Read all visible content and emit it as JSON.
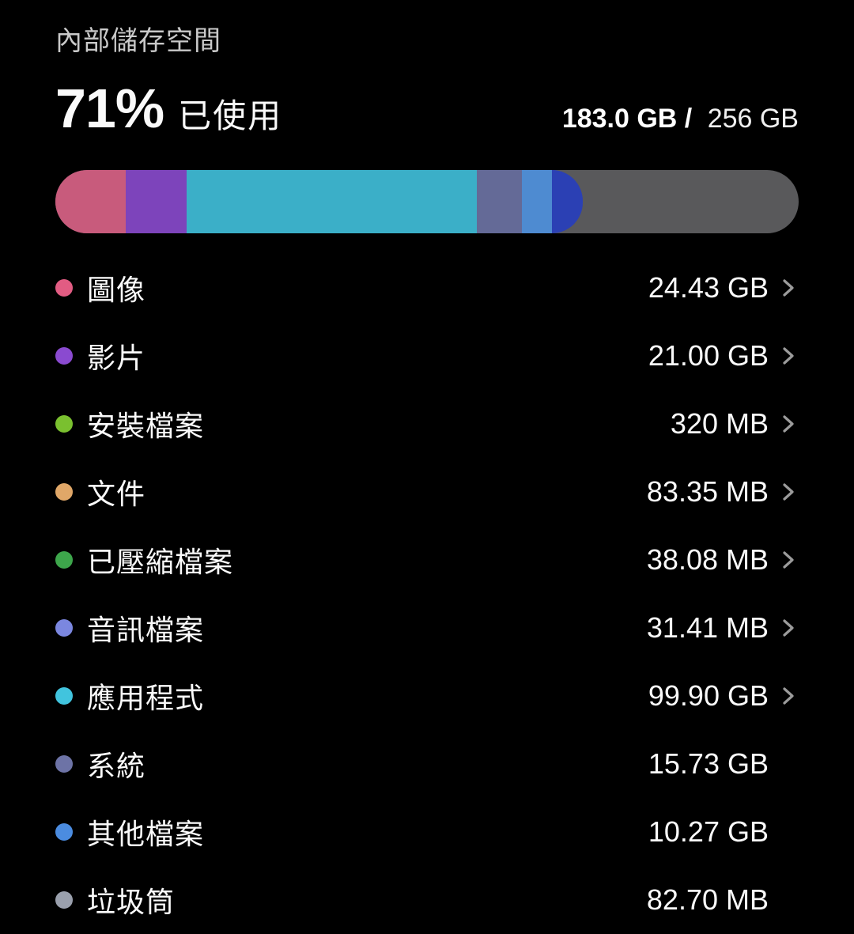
{
  "header": {
    "title": "內部儲存空間",
    "percent_used": "71%",
    "used_label": "已使用",
    "used_amount": "183.0 GB /",
    "total_amount": "256 GB"
  },
  "bar": {
    "track_color": "#59595b",
    "segments": [
      {
        "name": "images",
        "color": "#c85b7c",
        "percent": 9.5
      },
      {
        "name": "videos",
        "color": "#7d44bb",
        "percent": 8.2
      },
      {
        "name": "apps",
        "color": "#3bafc8",
        "percent": 39.0
      },
      {
        "name": "system",
        "color": "#646a97",
        "percent": 6.1
      },
      {
        "name": "other-files",
        "color": "#4e8bd1",
        "percent": 4.0
      },
      {
        "name": "misc",
        "color": "#2b40b4",
        "percent": 4.2
      }
    ]
  },
  "rows": [
    {
      "label": "圖像",
      "value": "24.43 GB",
      "color": "#e25c83",
      "has_chevron": true
    },
    {
      "label": "影片",
      "value": "21.00 GB",
      "color": "#8a4ad0",
      "has_chevron": true
    },
    {
      "label": "安裝檔案",
      "value": "320 MB",
      "color": "#7ac02f",
      "has_chevron": true
    },
    {
      "label": "文件",
      "value": "83.35 MB",
      "color": "#e0a768",
      "has_chevron": true
    },
    {
      "label": "已壓縮檔案",
      "value": "38.08 MB",
      "color": "#3da64b",
      "has_chevron": true
    },
    {
      "label": "音訊檔案",
      "value": "31.41 MB",
      "color": "#7b87e0",
      "has_chevron": true
    },
    {
      "label": "應用程式",
      "value": "99.90 GB",
      "color": "#41c4de",
      "has_chevron": true
    },
    {
      "label": "系統",
      "value": "15.73 GB",
      "color": "#6d73a6",
      "has_chevron": false
    },
    {
      "label": "其他檔案",
      "value": "10.27 GB",
      "color": "#4b8ce0",
      "has_chevron": false
    },
    {
      "label": "垃圾筒",
      "value": "82.70 MB",
      "color": "#9aa0ad",
      "has_chevron": false
    }
  ],
  "icons": {
    "chevron_color": "#9b9b9b"
  }
}
